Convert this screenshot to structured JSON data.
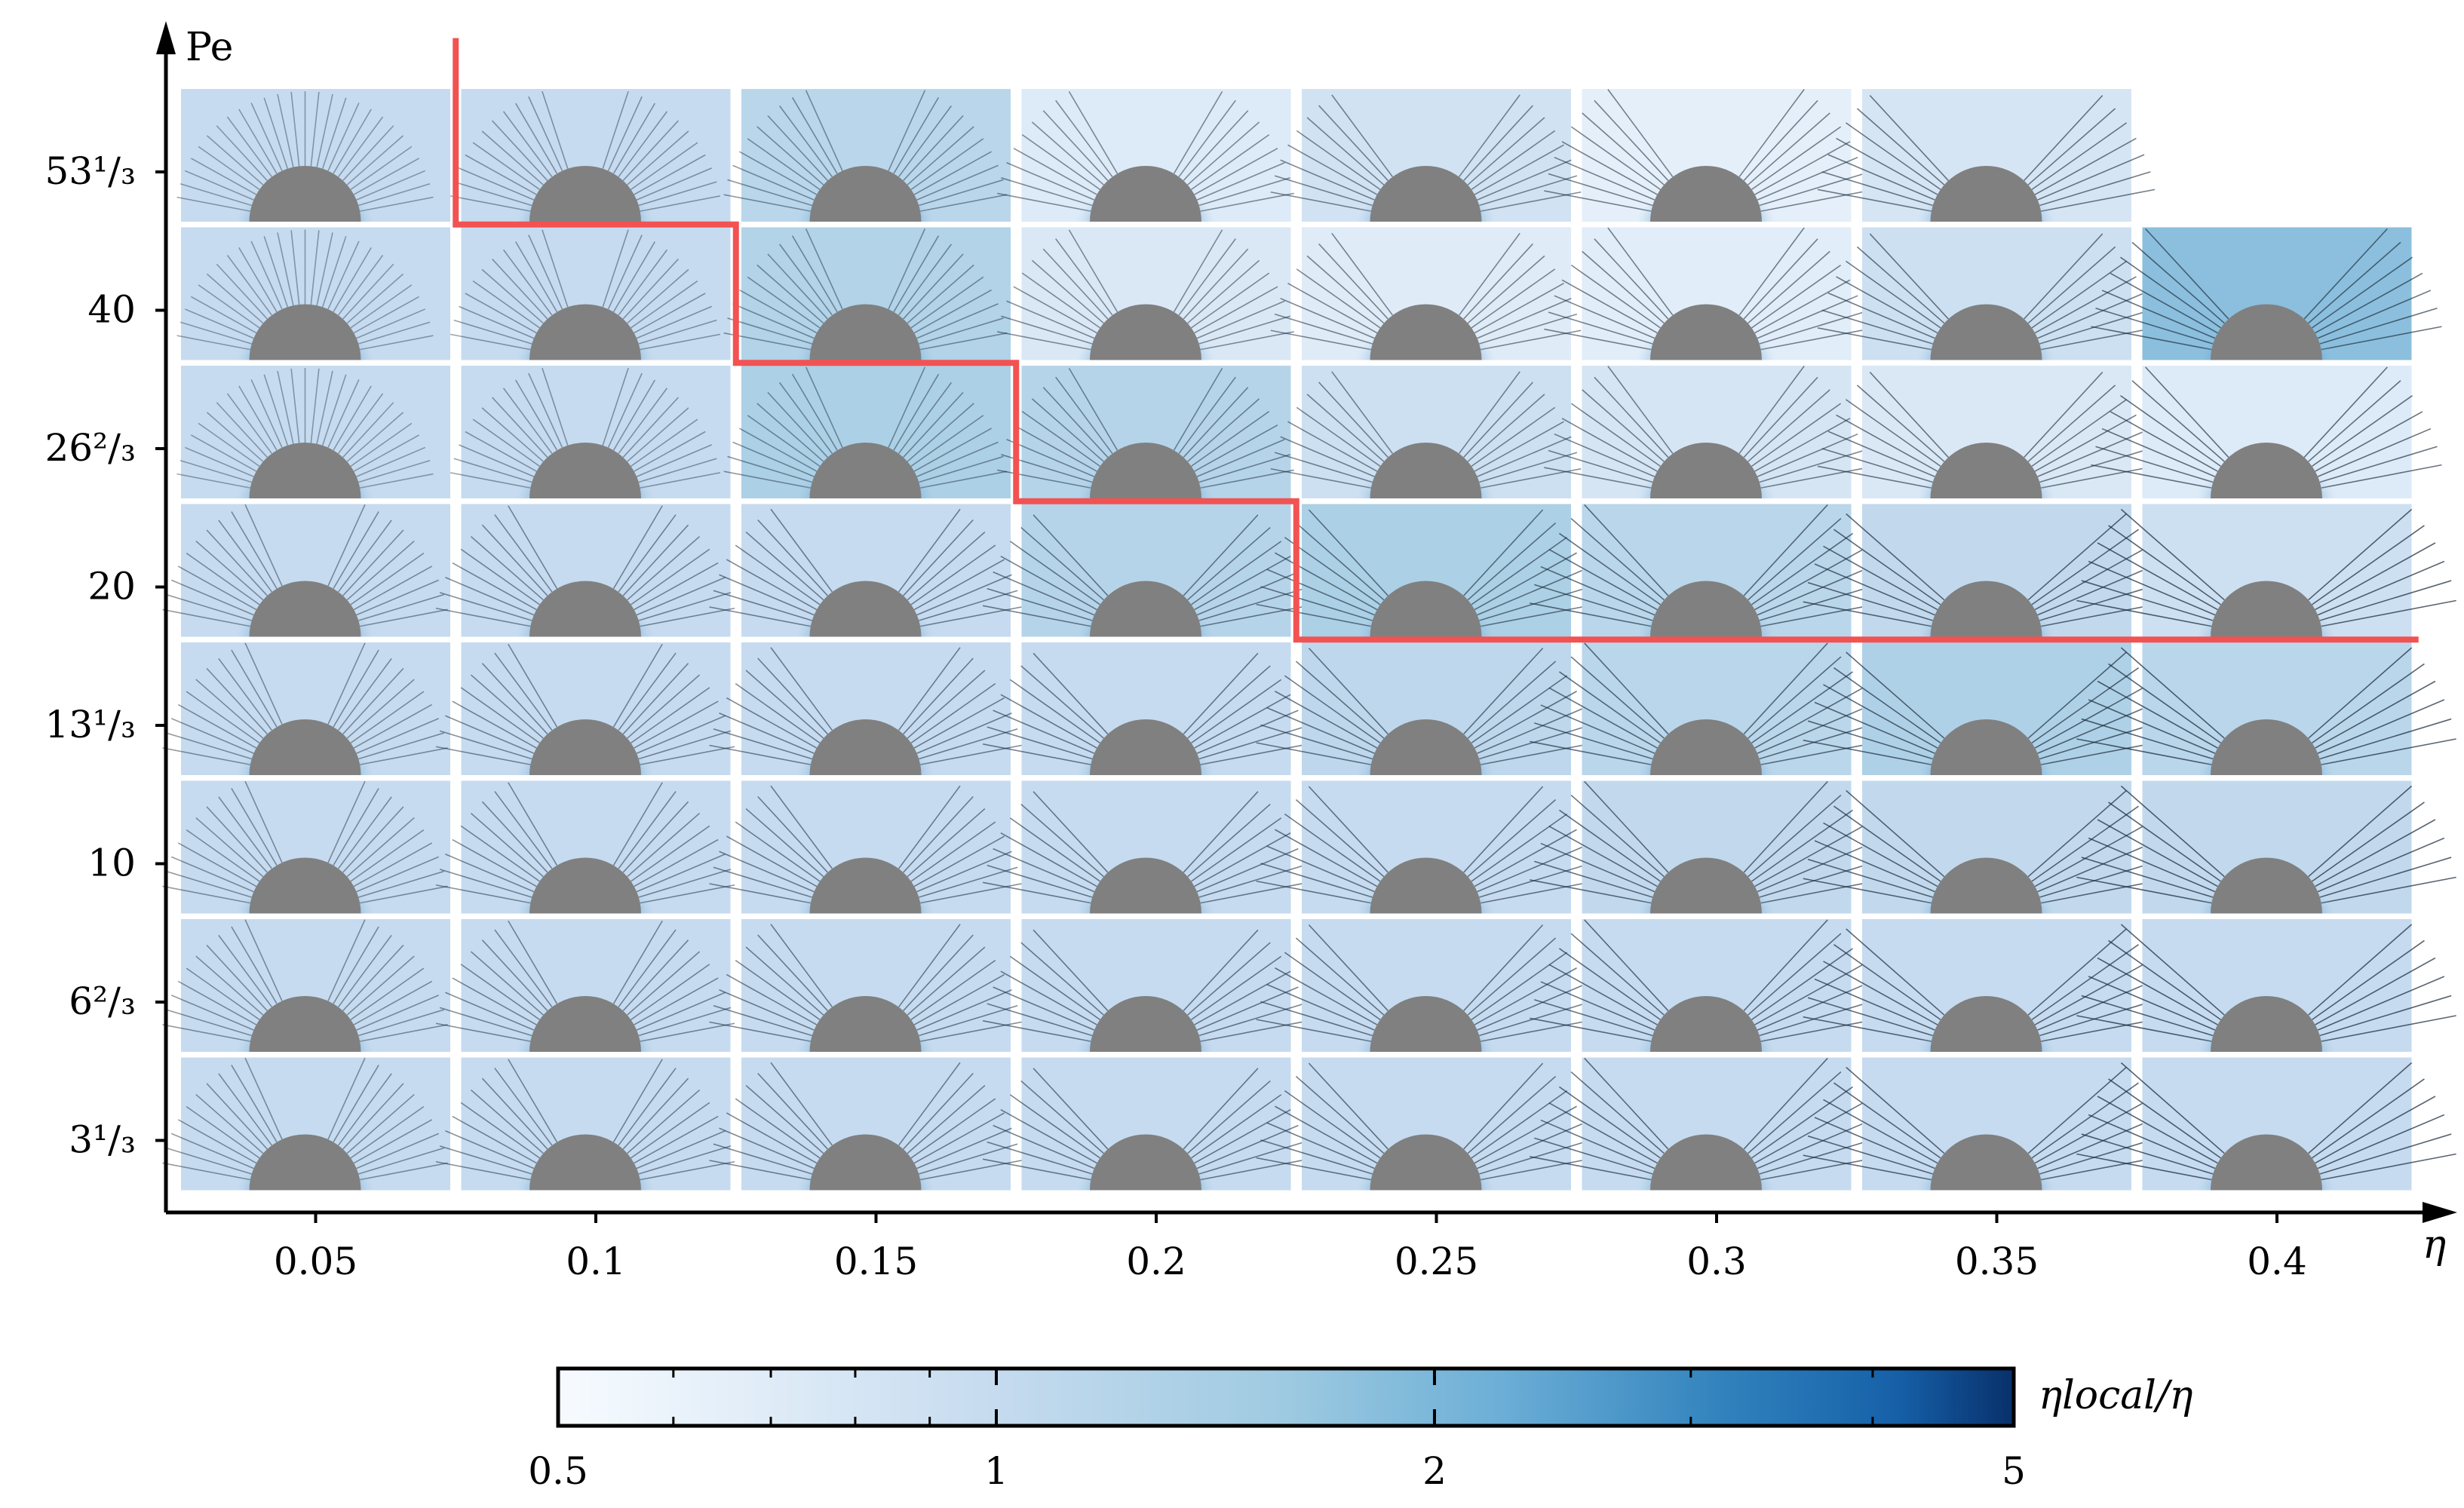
{
  "chart_data": {
    "type": "heatmap",
    "title": "",
    "xlabel": "η",
    "ylabel": "Pe",
    "x": [
      "0.05",
      "0.1",
      "0.15",
      "0.2",
      "0.25",
      "0.3",
      "0.35",
      "0.4"
    ],
    "y": [
      "53¹/₃",
      "40",
      "26²/₃",
      "20",
      "13¹/₃",
      "10",
      "6²/₃",
      "3¹/₃"
    ],
    "panel_present": [
      [
        true,
        true,
        true,
        true,
        true,
        true,
        true,
        false
      ],
      [
        true,
        true,
        true,
        true,
        true,
        true,
        true,
        true
      ],
      [
        true,
        true,
        true,
        true,
        true,
        true,
        true,
        true
      ],
      [
        true,
        true,
        true,
        true,
        true,
        true,
        true,
        true
      ],
      [
        true,
        true,
        true,
        true,
        true,
        true,
        true,
        true
      ],
      [
        true,
        true,
        true,
        true,
        true,
        true,
        true,
        true
      ],
      [
        true,
        true,
        true,
        true,
        true,
        true,
        true,
        true
      ],
      [
        true,
        true,
        true,
        true,
        true,
        true,
        true,
        true
      ]
    ],
    "panel_background_ratio": [
      [
        1.0,
        1.0,
        1.15,
        0.72,
        0.85,
        0.65,
        0.8,
        null
      ],
      [
        1.0,
        1.0,
        1.25,
        0.75,
        0.7,
        0.68,
        0.9,
        1.8
      ],
      [
        1.0,
        1.0,
        1.35,
        1.2,
        0.9,
        0.8,
        0.75,
        0.72
      ],
      [
        1.0,
        1.0,
        1.0,
        1.2,
        1.35,
        1.15,
        1.05,
        0.9
      ],
      [
        1.0,
        1.0,
        1.0,
        1.0,
        1.1,
        1.15,
        1.3,
        1.15
      ],
      [
        1.0,
        1.0,
        1.0,
        1.0,
        1.0,
        1.05,
        1.05,
        1.05
      ],
      [
        1.0,
        1.0,
        1.0,
        1.0,
        1.0,
        1.0,
        1.0,
        1.0
      ],
      [
        1.0,
        1.0,
        1.0,
        1.0,
        1.0,
        1.0,
        1.0,
        1.0
      ]
    ],
    "boundary": {
      "color": "#f25252",
      "steps": [
        {
          "eta_left": "0.05",
          "eta_right": "0.1",
          "pe_top": "53¹/₃"
        },
        {
          "eta_left": "0.1",
          "eta_right": "0.15",
          "pe_top": "40"
        },
        {
          "eta_left": "0.15",
          "eta_right": "0.2",
          "pe_top": "26²/₃"
        },
        {
          "eta_left": "0.2",
          "eta_right": "0.25",
          "pe_top": "20"
        }
      ]
    },
    "colorbar": {
      "label": "ηlocal/η",
      "scale": "log",
      "range": [
        0.5,
        5
      ],
      "tick_labels": [
        "0.5",
        "1",
        "2",
        "5"
      ],
      "tick_values": [
        0.5,
        1,
        2,
        5
      ],
      "minor_ticks": [
        0.6,
        0.7,
        0.8,
        0.9,
        3,
        4
      ],
      "colormap": "Blues"
    },
    "obstacle_color": "#808080",
    "streamline_color": "#1a2a3a",
    "grid": false
  }
}
